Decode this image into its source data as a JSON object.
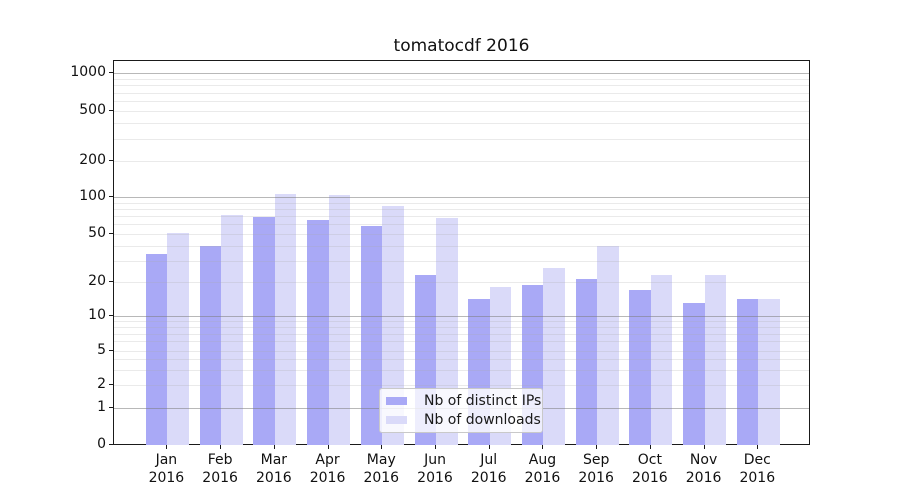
{
  "chart_data": {
    "type": "bar",
    "title": "tomatocdf 2016",
    "categories": [
      "Jan",
      "Feb",
      "Mar",
      "Apr",
      "May",
      "Jun",
      "Jul",
      "Aug",
      "Sep",
      "Oct",
      "Nov",
      "Dec"
    ],
    "year_label": "2016",
    "series": [
      {
        "name": "Nb of distinct IPs",
        "color": "#a9a9f6",
        "values": [
          34,
          40,
          69,
          65,
          58,
          23,
          14,
          19,
          21,
          17,
          13,
          14
        ]
      },
      {
        "name": "Nb of downloads",
        "color": "#dadaf9",
        "values": [
          51,
          71,
          106,
          104,
          85,
          68,
          18,
          26,
          40,
          23,
          23,
          14
        ]
      }
    ],
    "yticks": [
      0,
      1,
      2,
      5,
      10,
      20,
      50,
      100,
      200,
      500,
      1000
    ],
    "yscale": "symlog",
    "ylim": [
      0,
      1200
    ],
    "grid": true,
    "legend_position": "lower-center",
    "colors": {
      "major_grid": "#b5b5b5",
      "minor_grid": "#e8e8e8",
      "spine": "#1a1a1a",
      "text": "#111111",
      "background": "#ffffff"
    }
  }
}
